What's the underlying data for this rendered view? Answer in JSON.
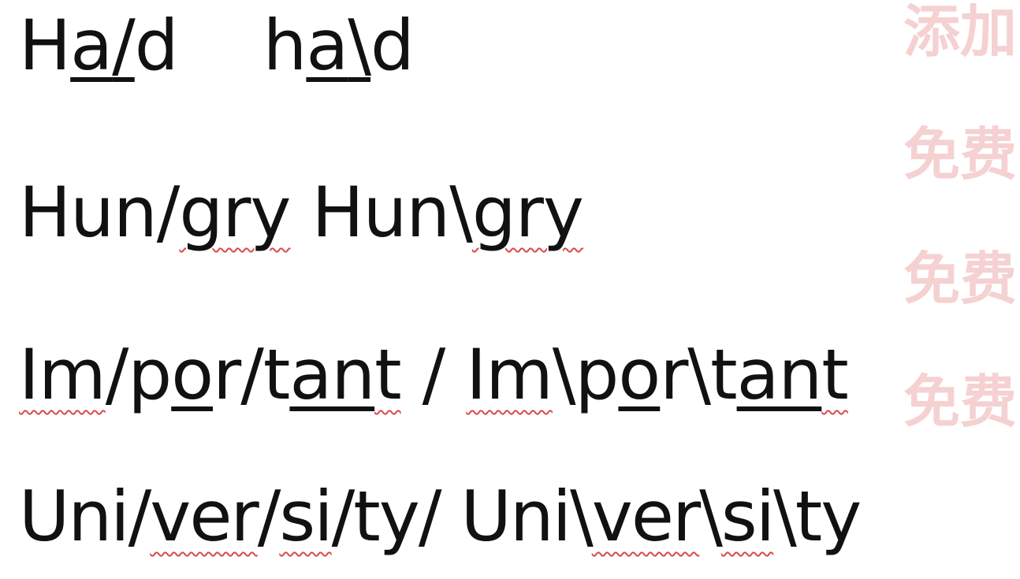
{
  "document": {
    "lines": [
      {
        "parts": [
          "H",
          "a",
          "/",
          "d",
          "h",
          "a",
          "\\",
          "d"
        ]
      },
      {
        "parts": [
          "Hun/",
          "gry",
          " Hun\\",
          "gry"
        ]
      },
      {
        "parts": [
          "Im",
          "/p",
          "o",
          "r/t",
          "an",
          "t",
          " / ",
          "Im",
          "\\p",
          "o",
          "r\\t",
          "an",
          "t"
        ]
      },
      {
        "parts": [
          "Uni/",
          "ver",
          "/",
          "si",
          "/ty/ Uni\\",
          "ver",
          "\\",
          "si",
          "\\ty"
        ]
      }
    ]
  },
  "watermark": {
    "lines": [
      "添加",
      "免费",
      "免费",
      "免费"
    ]
  },
  "colors": {
    "text": "#111111",
    "squiggle": "#d84a4a",
    "watermark": "#dc5a5a"
  }
}
